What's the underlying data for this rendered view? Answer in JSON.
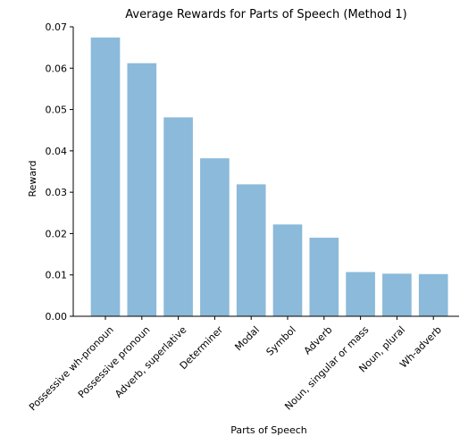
{
  "chart_data": {
    "type": "bar",
    "title": "Average Rewards for Parts of Speech (Method 1)",
    "xlabel": "Parts of Speech",
    "ylabel": "Reward",
    "categories": [
      "Possessive wh-pronoun",
      "Possessive pronoun",
      "Adverb, superlative",
      "Determiner",
      "Modal",
      "Symbol",
      "Adverb",
      "Noun, singular or mass",
      "Noun, plural",
      "Wh-adverb"
    ],
    "values": [
      0.0674,
      0.0612,
      0.0481,
      0.0382,
      0.0319,
      0.0222,
      0.019,
      0.0107,
      0.0103,
      0.0102
    ],
    "ylim": [
      0,
      0.07
    ],
    "yticks": [
      "0.00",
      "0.01",
      "0.02",
      "0.03",
      "0.04",
      "0.05",
      "0.06",
      "0.07"
    ],
    "bar_color": "#8bbada",
    "grid": false
  }
}
